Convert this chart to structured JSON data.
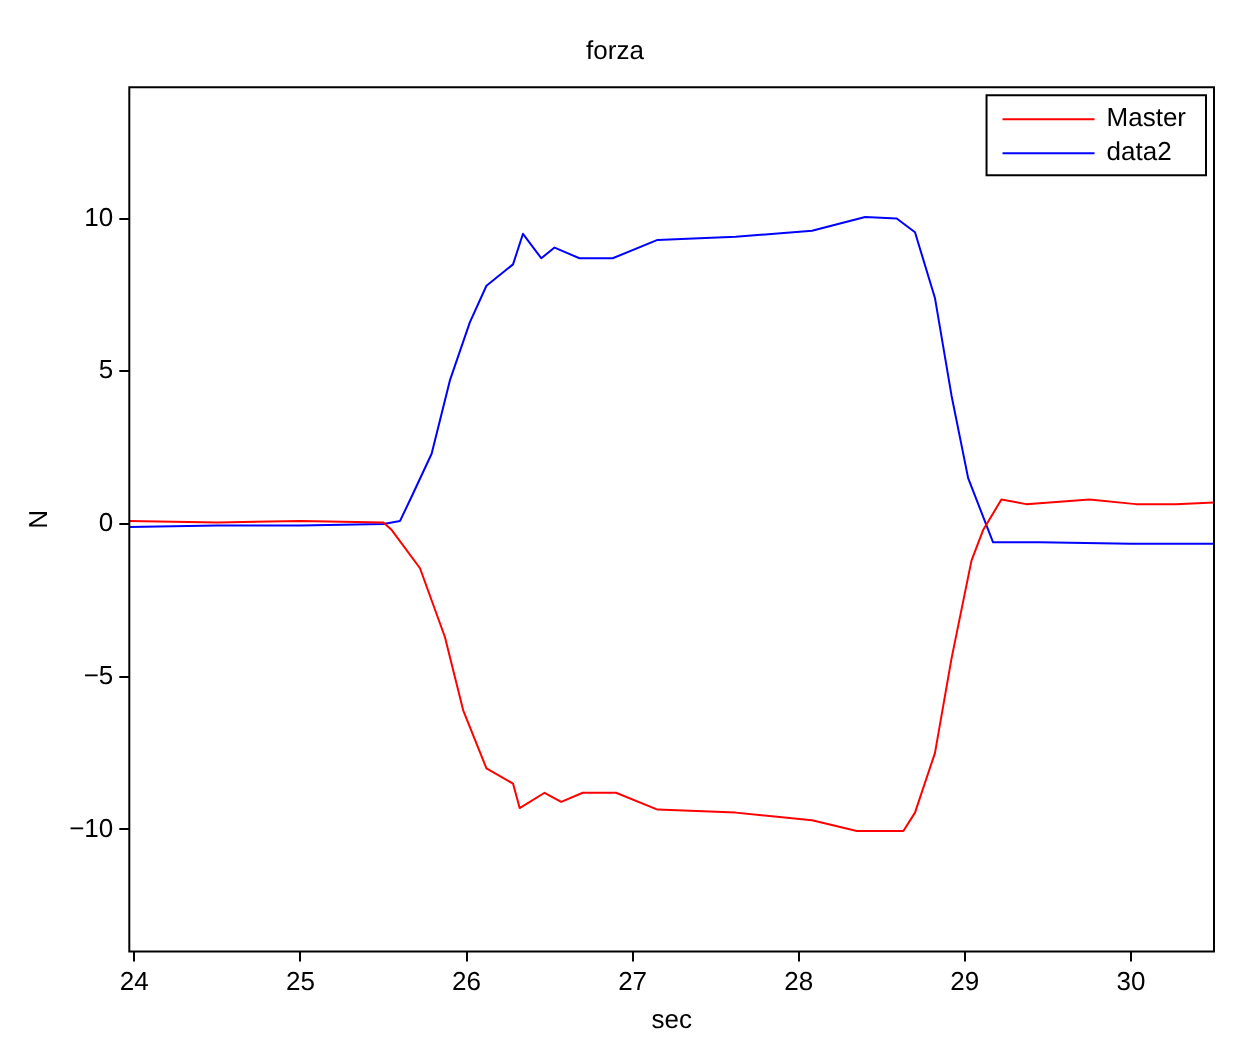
{
  "chart_data": {
    "type": "line",
    "title": "forza",
    "xlabel": "sec",
    "ylabel": "N",
    "xlim": [
      23.97,
      30.5
    ],
    "xticks": [
      24,
      25,
      26,
      27,
      28,
      29,
      30
    ],
    "ylim": [
      -14,
      14.3
    ],
    "yticks": [
      -10,
      -5,
      0,
      5,
      10
    ],
    "grid": false,
    "legend": "top right",
    "marker": "none",
    "line_style": "solid",
    "series": [
      {
        "name": "Master",
        "color": "#ff0000",
        "x": [
          23.97,
          24.5,
          25.0,
          25.5,
          25.55,
          25.72,
          25.87,
          25.98,
          26.12,
          26.28,
          26.32,
          26.47,
          26.57,
          26.7,
          26.9,
          27.15,
          27.62,
          28.08,
          28.35,
          28.63,
          28.7,
          28.82,
          28.92,
          29.04,
          29.11,
          29.22,
          29.37,
          29.75,
          30.03,
          30.27,
          30.5
        ],
        "values": [
          0.1,
          0.05,
          0.1,
          0.05,
          -0.2,
          -1.45,
          -3.7,
          -6.1,
          -8.0,
          -8.5,
          -9.3,
          -8.8,
          -9.1,
          -8.8,
          -8.8,
          -9.35,
          -9.45,
          -9.7,
          -10.05,
          -10.05,
          -9.45,
          -7.5,
          -4.4,
          -1.2,
          -0.2,
          0.8,
          0.65,
          0.8,
          0.65,
          0.65,
          0.7
        ]
      },
      {
        "name": "data2",
        "color": "#0000ff",
        "x": [
          23.97,
          24.5,
          25.0,
          25.5,
          25.6,
          25.67,
          25.79,
          25.9,
          26.02,
          26.12,
          26.28,
          26.34,
          26.45,
          26.53,
          26.68,
          26.88,
          27.15,
          27.62,
          28.08,
          28.4,
          28.59,
          28.7,
          28.82,
          28.92,
          29.02,
          29.17,
          29.45,
          30.0,
          30.5
        ],
        "values": [
          -0.1,
          -0.05,
          -0.05,
          0.0,
          0.1,
          0.9,
          2.3,
          4.7,
          6.6,
          7.8,
          8.5,
          9.5,
          8.7,
          9.05,
          8.7,
          8.7,
          9.3,
          9.4,
          9.6,
          10.05,
          10.0,
          9.55,
          7.4,
          4.2,
          1.5,
          -0.6,
          -0.6,
          -0.65,
          -0.65
        ]
      }
    ]
  }
}
